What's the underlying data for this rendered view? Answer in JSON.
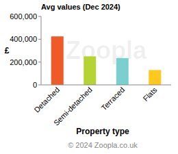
{
  "chart_data": {
    "type": "bar",
    "title": "Avg values (Dec 2024)",
    "x_label": "Property type",
    "y_label": "£",
    "categories": [
      "Detached",
      "Semi-detached",
      "Terraced",
      "Flats"
    ],
    "values": [
      425000,
      250000,
      235000,
      130000
    ],
    "colors": [
      "#f05a28",
      "#b5d335",
      "#7ccfcf",
      "#ffc81e"
    ],
    "ylim": [
      0,
      600000
    ],
    "yticks": [
      0,
      {
        "value": 200000,
        "label": "200,000"
      },
      {
        "value": 400000,
        "label": "400,000"
      },
      {
        "value": 600000,
        "label": "600,000"
      }
    ],
    "grid": false,
    "annotations": [
      "Zoopla",
      "© 2024 Zoopla.co.uk"
    ]
  }
}
